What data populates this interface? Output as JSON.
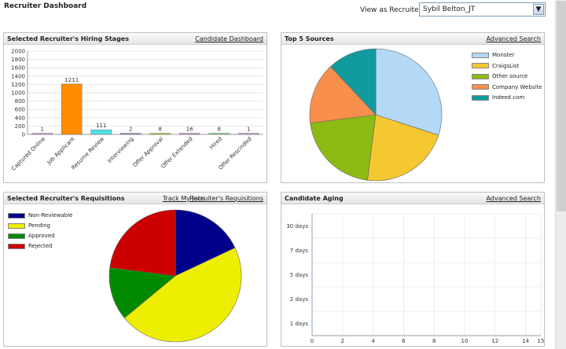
{
  "app": {
    "title": "Recruiter Dashboard"
  },
  "recruiter": {
    "label": "View as Recruiter:",
    "selected": "Sybil Belton_JT"
  },
  "panels": {
    "hiring": {
      "title": "Selected Recruiter's Hiring Stages",
      "link": "Candidate Dashboard"
    },
    "sources": {
      "title": "Top 5 Sources",
      "link": "Advanced Search"
    },
    "requisitions": {
      "title": "Selected Recruiter's Requisitions",
      "link1": "Track My Jobs",
      "link2": "Recruiter's Requisitions"
    },
    "aging": {
      "title": "Candidate Aging",
      "link": "Advanced Search"
    }
  },
  "chart_data": [
    {
      "type": "bar",
      "categories": [
        "Captured Online",
        "Job Applicant",
        "Resume Review",
        "Interviewing",
        "Offer Approval",
        "Offer Extended",
        "Hired",
        "Offer Rescinded"
      ],
      "values": [
        1,
        1211,
        111,
        2,
        8,
        16,
        8,
        1
      ],
      "data_labels": [
        "1",
        "1211",
        "111",
        "2",
        "8",
        "16",
        "8",
        "1"
      ],
      "colors": [
        "#d59bd9",
        "#ff8c00",
        "#4de0e0",
        "#9b82c8",
        "#9acd32",
        "#c98fd0",
        "#7fd67f",
        "#c0a0e0"
      ],
      "ylim": [
        0,
        2000
      ],
      "yticks": [
        "0",
        "200",
        "400",
        "600",
        "800",
        "1000",
        "1200",
        "1400",
        "1600",
        "1800",
        "2000"
      ],
      "grid": true
    },
    {
      "type": "pie",
      "labels": [
        "Monster",
        "CraigsList",
        "Other source",
        "Company Website",
        "Indeed.com"
      ],
      "values": [
        30,
        22,
        21,
        15,
        12
      ],
      "colors": [
        "#b3d9f7",
        "#f5c731",
        "#8cba12",
        "#f98f4c",
        "#129b9e"
      ],
      "legend": "right"
    },
    {
      "type": "pie",
      "labels": [
        "Non-Reviewable",
        "Pending",
        "Approved",
        "Rejected"
      ],
      "values": [
        18,
        46,
        13,
        23
      ],
      "colors": [
        "#00008b",
        "#eeee00",
        "#008a00",
        "#cc0000"
      ],
      "legend": "top-left"
    },
    {
      "type": "bar",
      "orientation": "horizontal",
      "categories": [
        "30 days",
        "7 days",
        "5 days",
        "2 days",
        "1 days"
      ],
      "values": [
        0,
        0,
        0,
        0,
        0
      ],
      "xlim": [
        0,
        15
      ],
      "xticks": [
        "0",
        "2",
        "4",
        "6",
        "8",
        "10",
        "12",
        "14",
        "15"
      ],
      "grid": true
    }
  ]
}
